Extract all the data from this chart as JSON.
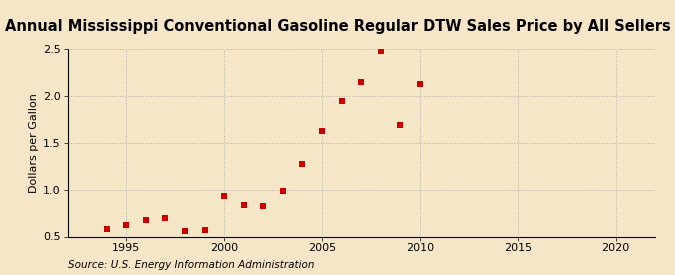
{
  "title": "Annual Mississippi Conventional Gasoline Regular DTW Sales Price by All Sellers",
  "ylabel": "Dollars per Gallon",
  "source": "Source: U.S. Energy Information Administration",
  "background_color": "#f5e6c8",
  "plot_bg_color": "#f5e6c8",
  "outer_bg_color": "#f5e6c8",
  "marker_color": "#cc0000",
  "years": [
    1994,
    1995,
    1996,
    1997,
    1998,
    1999,
    2000,
    2001,
    2002,
    2003,
    2004,
    2005,
    2006,
    2007,
    2008,
    2009,
    2010
  ],
  "values": [
    0.58,
    0.62,
    0.68,
    0.7,
    0.56,
    0.57,
    0.93,
    0.84,
    0.83,
    0.99,
    1.28,
    1.63,
    1.95,
    2.15,
    2.48,
    1.69,
    2.13
  ],
  "xlim": [
    1992,
    2022
  ],
  "ylim": [
    0.5,
    2.5
  ],
  "xticks": [
    1995,
    2000,
    2005,
    2010,
    2015,
    2020
  ],
  "yticks": [
    0.5,
    1.0,
    1.5,
    2.0,
    2.5
  ],
  "grid_color": "#aaaaaa",
  "title_fontsize": 10.5,
  "label_fontsize": 8,
  "source_fontsize": 7.5,
  "marker_size": 4
}
